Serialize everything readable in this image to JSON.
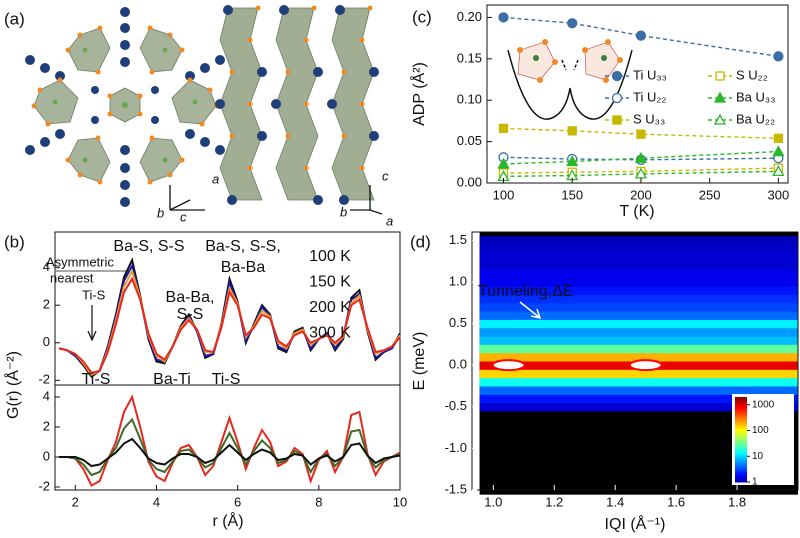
{
  "structure": {
    "label": "(a)",
    "axis_labels": [
      "a",
      "b",
      "c",
      "c",
      "b",
      "a"
    ]
  },
  "chart_data": [
    {
      "type": "line",
      "label": "(c)",
      "xlabel": "T (K)",
      "ylabel": "ADP (Å²)",
      "x": [
        100,
        150,
        200,
        300
      ],
      "xlim": [
        88,
        307
      ],
      "xticks": [
        100,
        150,
        200,
        250,
        300
      ],
      "ylim": [
        0,
        0.215
      ],
      "yticks": [
        {
          "value": 0,
          "label": "0.00"
        },
        0.05,
        {
          "value": 0.1,
          "label": "0.10"
        },
        0.15,
        {
          "value": 0.2,
          "label": "0.20"
        }
      ],
      "legend": "upper right",
      "series": [
        {
          "name": "Ti U₃₃",
          "color": "#3a6ea5",
          "marker": "circle",
          "filled": true,
          "linestyle": "dashed",
          "values": [
            0.2,
            0.193,
            0.178,
            0.153
          ]
        },
        {
          "name": "Ti U₂₂",
          "color": "#3a6ea5",
          "marker": "circle",
          "filled": false,
          "linestyle": "dashed",
          "values": [
            0.031,
            0.029,
            0.028,
            0.03
          ]
        },
        {
          "name": "S U₃₃",
          "color": "#c9b800",
          "marker": "square",
          "filled": true,
          "linestyle": "dashed",
          "values": [
            0.066,
            0.063,
            0.059,
            0.054
          ]
        },
        {
          "name": "S U₂₂",
          "color": "#c9b800",
          "marker": "square",
          "filled": false,
          "linestyle": "dashed",
          "values": [
            0.012,
            0.013,
            0.014,
            0.018
          ]
        },
        {
          "name": "Ba U₃₃",
          "color": "#2ab82a",
          "marker": "triangle",
          "filled": true,
          "linestyle": "dashed",
          "values": [
            0.023,
            0.026,
            0.03,
            0.038
          ]
        },
        {
          "name": "Ba U₂₂",
          "color": "#2ab82a",
          "marker": "triangle",
          "filled": false,
          "linestyle": "dashed",
          "values": [
            0.008,
            0.009,
            0.011,
            0.014
          ]
        }
      ]
    },
    {
      "type": "line",
      "label": "(b)",
      "ylabel": "G(r) (Å⁻²)",
      "annotations": [
        "Asymmetric",
        "nearest",
        "Ti-S",
        "Ti-S",
        "Ba-S, S-S",
        "Ba-Ti",
        "Ba-Ba,",
        "S-S",
        "Ti-S",
        "Ba-S, S-S,",
        "Ba-Ba"
      ],
      "x": [
        1.6,
        1.8,
        2.0,
        2.2,
        2.4,
        2.6,
        2.8,
        3.0,
        3.2,
        3.4,
        3.6,
        3.8,
        4.0,
        4.2,
        4.4,
        4.6,
        4.8,
        5.0,
        5.2,
        5.4,
        5.6,
        5.8,
        6.0,
        6.2,
        6.4,
        6.6,
        6.8,
        7.0,
        7.2,
        7.4,
        7.6,
        7.8,
        8.0,
        8.2,
        8.4,
        8.6,
        8.8,
        9.0,
        9.2,
        9.4,
        9.6,
        9.8,
        10.0
      ],
      "xlim": [
        1.5,
        10
      ],
      "ylim": [
        -2.25,
        5.9
      ],
      "yticks": [
        -2,
        0,
        2,
        4
      ],
      "legend": "upper right",
      "series": [
        {
          "name": "100 K",
          "color": "#111111",
          "values": [
            -0.3,
            -0.4,
            -0.7,
            -1.2,
            -1.8,
            -1.5,
            -0.2,
            1.5,
            3.5,
            4.4,
            2.5,
            0.2,
            -1.0,
            -1.1,
            -0.2,
            0.9,
            1.5,
            0.6,
            -0.8,
            -0.6,
            1.0,
            3.4,
            2.2,
            0.0,
            1.0,
            2.0,
            1.5,
            -0.3,
            -0.5,
            0.6,
            0.8,
            -0.4,
            0.2,
            0.5,
            -0.4,
            0.2,
            2.4,
            2.8,
            0.6,
            -0.9,
            -0.5,
            -0.3,
            0.5
          ]
        },
        {
          "name": "150 K",
          "color": "#1a1aa6",
          "values": [
            -0.3,
            -0.4,
            -0.7,
            -1.1,
            -1.7,
            -1.5,
            -0.3,
            1.4,
            3.3,
            4.1,
            2.4,
            0.3,
            -0.9,
            -1.0,
            -0.2,
            0.8,
            1.4,
            0.6,
            -0.7,
            -0.6,
            0.9,
            3.2,
            2.1,
            0.1,
            0.9,
            1.9,
            1.4,
            -0.2,
            -0.4,
            0.5,
            0.7,
            -0.3,
            0.2,
            0.5,
            -0.3,
            0.3,
            2.3,
            2.6,
            0.7,
            -0.8,
            -0.5,
            -0.3,
            0.4
          ]
        },
        {
          "name": "200 K",
          "color": "#f0a030",
          "values": [
            -0.3,
            -0.4,
            -0.6,
            -1.1,
            -1.7,
            -1.5,
            -0.4,
            1.2,
            3.0,
            3.8,
            2.4,
            0.4,
            -0.7,
            -1.0,
            -0.2,
            0.8,
            1.3,
            0.7,
            -0.5,
            -0.5,
            0.9,
            2.9,
            2.1,
            0.3,
            0.9,
            1.7,
            1.4,
            0.0,
            -0.3,
            0.5,
            0.7,
            -0.1,
            0.2,
            0.4,
            -0.1,
            0.3,
            2.1,
            2.5,
            0.7,
            -0.6,
            -0.4,
            -0.2,
            0.4
          ]
        },
        {
          "name": "300 K",
          "color": "#e8281e",
          "values": [
            -0.3,
            -0.4,
            -0.6,
            -1.0,
            -1.6,
            -1.5,
            -0.5,
            1.0,
            2.7,
            3.4,
            2.3,
            0.5,
            -0.6,
            -0.9,
            -0.2,
            0.7,
            1.2,
            0.7,
            -0.4,
            -0.5,
            0.8,
            2.7,
            2.0,
            0.4,
            0.8,
            1.5,
            1.3,
            0.1,
            -0.2,
            0.4,
            0.6,
            0.0,
            0.2,
            0.4,
            0.0,
            0.4,
            2.0,
            2.3,
            0.8,
            -0.5,
            -0.4,
            -0.2,
            0.3
          ]
        }
      ]
    },
    {
      "type": "line",
      "xlabel": "r (Å)",
      "x": [
        1.6,
        1.8,
        2.0,
        2.2,
        2.4,
        2.6,
        2.8,
        3.0,
        3.2,
        3.4,
        3.6,
        3.8,
        4.0,
        4.2,
        4.4,
        4.6,
        4.8,
        5.0,
        5.2,
        5.4,
        5.6,
        5.8,
        6.0,
        6.2,
        6.4,
        6.6,
        6.8,
        7.0,
        7.2,
        7.4,
        7.6,
        7.8,
        8.0,
        8.2,
        8.4,
        8.6,
        8.8,
        9.0,
        9.2,
        9.4,
        9.6,
        9.8,
        10.0
      ],
      "xlim": [
        1.5,
        10
      ],
      "xticks": [
        2,
        4,
        6,
        8,
        10
      ],
      "ylim": [
        -2.2,
        4.8
      ],
      "yticks": [
        -2,
        0,
        2,
        4
      ],
      "series": [
        {
          "color": "#e8281e",
          "values": [
            0.0,
            0.0,
            -0.1,
            -0.8,
            -1.9,
            -1.6,
            -0.2,
            1.0,
            3.0,
            4.0,
            2.0,
            -0.3,
            -1.3,
            -1.6,
            -0.4,
            0.6,
            0.8,
            0.0,
            -1.2,
            -0.6,
            1.0,
            2.6,
            1.0,
            -0.8,
            0.6,
            1.8,
            1.0,
            -0.6,
            -0.3,
            0.6,
            0.2,
            -1.6,
            -0.2,
            0.4,
            -1.0,
            0.0,
            2.8,
            3.0,
            0.2,
            -1.2,
            -0.3,
            0.0,
            0.3
          ]
        },
        {
          "color": "#3d6b2a",
          "values": [
            0.0,
            0.0,
            -0.1,
            -0.5,
            -1.2,
            -1.0,
            -0.1,
            0.6,
            1.9,
            2.5,
            1.2,
            -0.2,
            -0.8,
            -1.0,
            -0.3,
            0.4,
            0.5,
            0.0,
            -0.7,
            -0.4,
            0.6,
            1.6,
            0.6,
            -0.5,
            0.4,
            1.1,
            0.6,
            -0.4,
            -0.2,
            0.4,
            0.1,
            -1.0,
            -0.1,
            0.2,
            -0.6,
            0.0,
            1.7,
            1.8,
            0.1,
            -0.7,
            -0.2,
            0.0,
            0.2
          ]
        },
        {
          "color": "#111111",
          "values": [
            0.0,
            0.0,
            0.0,
            -0.2,
            -0.6,
            -0.5,
            -0.1,
            0.3,
            0.9,
            1.2,
            0.6,
            -0.1,
            -0.4,
            -0.5,
            -0.1,
            0.2,
            0.2,
            0.0,
            -0.4,
            -0.2,
            0.3,
            0.8,
            0.3,
            -0.2,
            0.2,
            0.5,
            0.3,
            -0.2,
            -0.1,
            0.2,
            0.1,
            -0.5,
            -0.1,
            0.1,
            -0.3,
            0.0,
            0.8,
            0.9,
            0.1,
            -0.4,
            -0.1,
            0.0,
            0.1
          ]
        }
      ]
    },
    {
      "type": "heatmap",
      "label": "(d)",
      "xlabel": "IQI (Å⁻¹)",
      "ylabel": "E (meV)",
      "annotation": "Tunneling,ΔE",
      "xlim": [
        0.93,
        2.0
      ],
      "xticks": [
        {
          "value": 1,
          "label": "1.0"
        },
        1.2,
        1.4,
        1.6,
        1.8
      ],
      "ylim": [
        -1.5,
        1.6
      ],
      "yticks": [
        -1.5,
        {
          "value": -1,
          "label": "-1.0"
        },
        -0.5,
        {
          "value": 0,
          "label": "0.0"
        },
        0.5,
        {
          "value": 1,
          "label": "1.0"
        },
        1.5
      ],
      "y": [
        -1.5,
        -1.4,
        -1.3,
        -1.2,
        -1.1,
        -1.0,
        -0.9,
        -0.8,
        -0.7,
        -0.6,
        -0.5,
        -0.4,
        -0.3,
        -0.2,
        -0.1,
        0.0,
        0.1,
        0.2,
        0.3,
        0.4,
        0.5,
        0.6,
        0.7,
        0.8,
        0.9,
        1.0,
        1.1,
        1.2,
        1.3,
        1.4,
        1.5
      ],
      "values": [
        0.5,
        0.5,
        0.5,
        0.5,
        0.5,
        0.5,
        0.5,
        0.5,
        0.5,
        0.5,
        1.2,
        2,
        4,
        15,
        150,
        1000,
        200,
        30,
        8,
        6,
        12,
        4,
        3,
        2.5,
        2,
        1.5,
        1.5,
        1.2,
        1.2,
        1.1,
        1.0
      ],
      "colorbar_lim": [
        1,
        2000
      ],
      "colorbar_log": true,
      "colorbar_ticks": [
        1,
        10,
        100,
        1000
      ]
    }
  ]
}
